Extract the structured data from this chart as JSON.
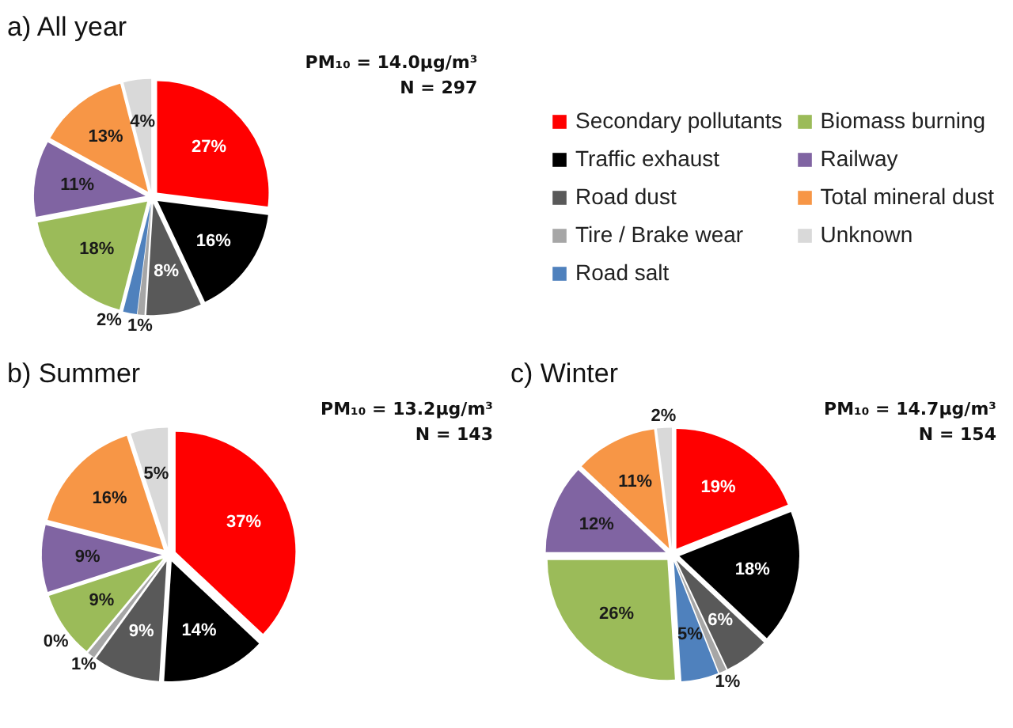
{
  "chart_data": [
    {
      "type": "pie",
      "title": "a) All year",
      "annotations": [
        "PM₁₀ = 14.0µg/m³",
        "N = 297"
      ],
      "categories": [
        "Secondary pollutants",
        "Traffic exhaust",
        "Road dust",
        "Tire / Brake wear",
        "Road salt",
        "Biomass burning",
        "Railway",
        "Total mineral dust",
        "Unknown"
      ],
      "values": [
        27,
        16,
        8,
        1,
        2,
        18,
        11,
        13,
        4
      ],
      "value_labels": [
        "27%",
        "16%",
        "8%",
        "1%",
        "2%",
        "18%",
        "11%",
        "13%",
        "4%"
      ],
      "colors": [
        "#ff0000",
        "#000000",
        "#595959",
        "#a6a6a6",
        "#4f81bd",
        "#9bbb59",
        "#8064a2",
        "#f79646",
        "#d9d9d9"
      ],
      "legend": "right"
    },
    {
      "type": "pie",
      "title": "b) Summer",
      "annotations": [
        "PM₁₀ = 13.2µg/m³",
        "N = 143"
      ],
      "categories": [
        null,
        null,
        null,
        null,
        null,
        null,
        null,
        null,
        null
      ],
      "values": [
        37,
        14,
        9,
        1,
        0,
        9,
        9,
        16,
        5
      ],
      "value_labels": [
        "37%",
        "14%",
        "9%",
        "1%",
        "0%",
        "9%",
        "9%",
        "16%",
        "5%"
      ],
      "colors": [
        "#ff0000",
        "#000000",
        "#595959",
        "#a6a6a6",
        "#4f81bd",
        "#9bbb59",
        "#8064a2",
        "#f79646",
        "#d9d9d9"
      ]
    },
    {
      "type": "pie",
      "title": "c) Winter",
      "annotations": [
        "PM₁₀ = 14.7µg/m³",
        "N = 154"
      ],
      "categories": [
        null,
        null,
        null,
        null,
        null,
        null,
        null,
        null,
        null
      ],
      "values": [
        19,
        18,
        6,
        1,
        5,
        26,
        12,
        11,
        2
      ],
      "value_labels": [
        "19%",
        "18%",
        "6%",
        "1%",
        "5%",
        "26%",
        "12%",
        "11%",
        "2%"
      ],
      "colors": [
        "#ff0000",
        "#000000",
        "#595959",
        "#a6a6a6",
        "#4f81bd",
        "#9bbb59",
        "#8064a2",
        "#f79646",
        "#d9d9d9"
      ]
    }
  ]
}
